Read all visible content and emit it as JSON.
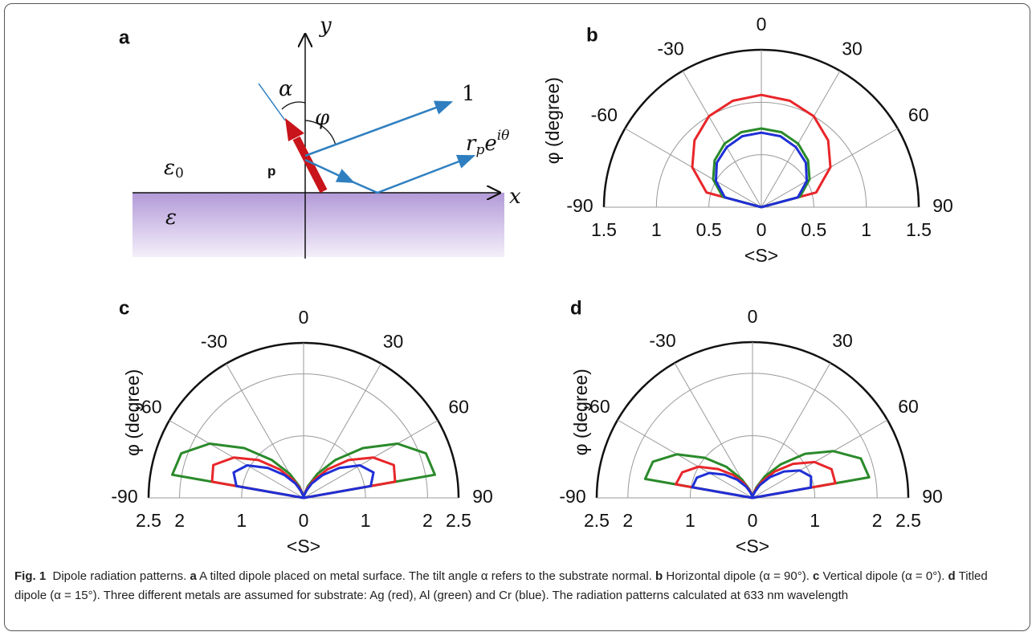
{
  "diagram": {
    "panel": "a",
    "y_axis": "y",
    "x_axis": "x",
    "alpha": "α",
    "phi": "φ",
    "direct": "1",
    "reflected": {
      "base": "r",
      "sub": "p",
      "exp_base": "e",
      "sup": "iθ"
    },
    "medium_top": {
      "base": "ε",
      "sub": "0"
    },
    "dipole": "p",
    "medium_bottom": "ε"
  },
  "chart_data": [
    {
      "type": "polar",
      "panel": "b",
      "ylabel": "φ (degree)",
      "xlabel": "<S>",
      "theta": [
        -90,
        -75,
        -60,
        -45,
        -30,
        -15,
        0,
        15,
        30,
        45,
        60,
        75,
        90
      ],
      "rlim": [
        0,
        1.5
      ],
      "rticks": [
        0,
        0.5,
        1,
        1.5
      ],
      "thetaticks": [
        -90,
        -60,
        -30,
        0,
        30,
        60,
        90
      ],
      "series": [
        {
          "color": "#e8262a",
          "values": [
            0,
            0.54,
            0.76,
            0.9,
            1.0,
            1.05,
            1.07,
            1.05,
            1.0,
            0.9,
            0.76,
            0.54,
            0
          ]
        },
        {
          "color": "#2a8a2a",
          "values": [
            0,
            0.38,
            0.53,
            0.63,
            0.7,
            0.74,
            0.75,
            0.74,
            0.7,
            0.63,
            0.53,
            0.38,
            0
          ]
        },
        {
          "color": "#1f2fd6",
          "values": [
            0,
            0.36,
            0.5,
            0.6,
            0.66,
            0.7,
            0.71,
            0.7,
            0.66,
            0.6,
            0.5,
            0.36,
            0
          ]
        }
      ]
    },
    {
      "type": "polar",
      "panel": "c",
      "ylabel": "φ (degree)",
      "xlabel": "<S>",
      "theta": [
        -90,
        -80,
        -70,
        -60,
        -50,
        -40,
        -30,
        -20,
        -10,
        0,
        10,
        20,
        30,
        40,
        50,
        60,
        70,
        80,
        90
      ],
      "rlim": [
        0,
        2.5
      ],
      "rticks": [
        0,
        1,
        2,
        2.5
      ],
      "thetaticks": [
        -90,
        -60,
        -30,
        0,
        30,
        60,
        90
      ],
      "series": [
        {
          "color": "#2a8a2a",
          "values": [
            0,
            2.15,
            2.1,
            1.75,
            1.25,
            0.8,
            0.45,
            0.2,
            0.05,
            0,
            0.05,
            0.2,
            0.45,
            0.8,
            1.25,
            1.75,
            2.1,
            2.15,
            0
          ]
        },
        {
          "color": "#e8262a",
          "values": [
            0,
            1.5,
            1.55,
            1.3,
            0.95,
            0.6,
            0.33,
            0.15,
            0.04,
            0,
            0.04,
            0.15,
            0.33,
            0.6,
            0.95,
            1.3,
            1.55,
            1.5,
            0
          ]
        },
        {
          "color": "#1f2fd6",
          "values": [
            0,
            1.1,
            1.2,
            1.05,
            0.75,
            0.48,
            0.27,
            0.12,
            0.03,
            0,
            0.03,
            0.12,
            0.27,
            0.48,
            0.75,
            1.05,
            1.2,
            1.1,
            0
          ]
        }
      ]
    },
    {
      "type": "polar",
      "panel": "d",
      "ylabel": "φ (degree)",
      "xlabel": "<S>",
      "theta": [
        -90,
        -80,
        -70,
        -60,
        -50,
        -40,
        -30,
        -20,
        -10,
        0,
        10,
        20,
        30,
        40,
        50,
        60,
        70,
        80,
        90
      ],
      "rlim": [
        0,
        2.5
      ],
      "rticks": [
        0,
        1,
        2,
        2.5
      ],
      "thetaticks": [
        -90,
        -60,
        -30,
        0,
        30,
        60,
        90
      ],
      "series": [
        {
          "color": "#2a8a2a",
          "values": [
            0,
            1.75,
            1.7,
            1.4,
            1.0,
            0.65,
            0.35,
            0.15,
            0.04,
            0,
            0.05,
            0.18,
            0.4,
            0.7,
            1.1,
            1.5,
            1.85,
            1.9,
            0
          ]
        },
        {
          "color": "#e8262a",
          "values": [
            0,
            1.25,
            1.2,
            1.0,
            0.72,
            0.48,
            0.27,
            0.12,
            0.03,
            0,
            0.04,
            0.14,
            0.3,
            0.55,
            0.85,
            1.15,
            1.35,
            1.35,
            0
          ]
        },
        {
          "color": "#1f2fd6",
          "values": [
            0,
            0.98,
            0.95,
            0.8,
            0.58,
            0.38,
            0.21,
            0.09,
            0.02,
            0,
            0.03,
            0.1,
            0.24,
            0.43,
            0.66,
            0.88,
            1.0,
            0.95,
            0
          ]
        }
      ]
    }
  ],
  "caption": [
    {
      "text": "Fig. 1",
      "bold": true
    },
    {
      "text": "  Dipole radiation patterns. ",
      "bold": false
    },
    {
      "text": "a",
      "bold": true
    },
    {
      "text": " A tilted dipole placed on metal surface. The tilt angle α refers to the substrate normal. ",
      "bold": false
    },
    {
      "text": "b",
      "bold": true
    },
    {
      "text": " Horizontal dipole (α = 90°). ",
      "bold": false
    },
    {
      "text": "c",
      "bold": true
    },
    {
      "text": " Vertical dipole (α = 0°). ",
      "bold": false
    },
    {
      "text": "d",
      "bold": true
    },
    {
      "text": " Titled dipole (α = 15°). Three different metals are assumed for substrate: Ag (red), Al (green) and Cr (blue). The radiation patterns calculated at 633 nm wavelength",
      "bold": false
    }
  ]
}
